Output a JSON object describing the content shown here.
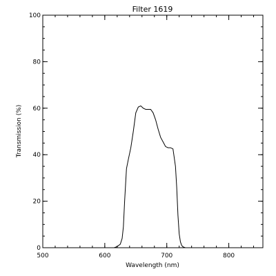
{
  "chart_data": {
    "type": "line",
    "title": "Filter  1619",
    "xlabel": "Wavelength (nm)",
    "ylabel": "Transmission (%)",
    "xlim": [
      500,
      855
    ],
    "ylim": [
      0,
      100
    ],
    "x_ticks": [
      500,
      600,
      700,
      800
    ],
    "y_ticks": [
      0,
      20,
      40,
      60,
      80,
      100
    ],
    "x_minor_step": 20,
    "y_minor_step": 5,
    "grid": false,
    "series": [
      {
        "color": "#000000",
        "x": [
          500,
          615,
          620,
          625,
          628,
          630,
          632,
          635,
          638,
          642,
          646,
          650,
          654,
          658,
          662,
          666,
          670,
          674,
          678,
          682,
          686,
          690,
          694,
          698,
          702,
          706,
          710,
          714,
          716,
          718,
          720,
          722,
          724,
          726,
          728,
          730,
          735,
          855
        ],
        "y": [
          0,
          0,
          0.5,
          1.5,
          4,
          9,
          20,
          34,
          38,
          43,
          50,
          58,
          60.5,
          61,
          60,
          59.5,
          59.5,
          59.5,
          58,
          55,
          51,
          47.5,
          45.5,
          43.5,
          43,
          43,
          42.5,
          35,
          26,
          14,
          6,
          2.5,
          1,
          0.4,
          0.2,
          0,
          0,
          0
        ]
      }
    ]
  }
}
